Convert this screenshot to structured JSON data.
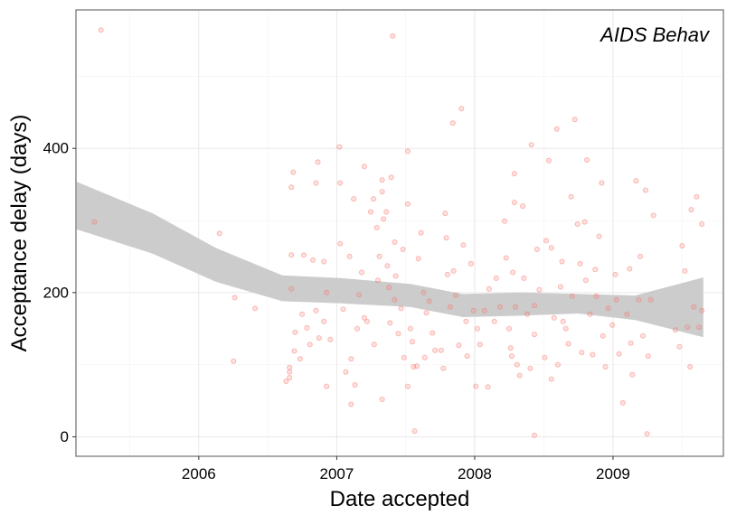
{
  "chart_data": {
    "type": "scatter",
    "title": "",
    "annotation": "AIDS Behav",
    "xlabel": "Date accepted",
    "ylabel": "Acceptance delay (days)",
    "x_ticks": [
      "2006",
      "2007",
      "2008",
      "2009"
    ],
    "y_ticks": [
      "0",
      "200",
      "400"
    ],
    "xlim": [
      "2005-02-10",
      "2009-10-20"
    ],
    "ylim": [
      -27,
      592
    ],
    "grid": true,
    "point_color": "#F8766D",
    "band_color": "#cccccc",
    "points": [
      {
        "x": "2005-03-31",
        "y": 298
      },
      {
        "x": "2005-04-17",
        "y": 564
      },
      {
        "x": "2006-02-25",
        "y": 282
      },
      {
        "x": "2006-04-06",
        "y": 193
      },
      {
        "x": "2006-04-03",
        "y": 105
      },
      {
        "x": "2006-05-30",
        "y": 178
      },
      {
        "x": "2006-08-20",
        "y": 77
      },
      {
        "x": "2006-08-29",
        "y": 96
      },
      {
        "x": "2006-08-29",
        "y": 82
      },
      {
        "x": "2006-08-29",
        "y": 90
      },
      {
        "x": "2006-09-03",
        "y": 205
      },
      {
        "x": "2006-09-03",
        "y": 252
      },
      {
        "x": "2006-09-03",
        "y": 346
      },
      {
        "x": "2006-09-08",
        "y": 367
      },
      {
        "x": "2006-09-11",
        "y": 119
      },
      {
        "x": "2006-09-13",
        "y": 145
      },
      {
        "x": "2006-09-26",
        "y": 108
      },
      {
        "x": "2006-10-01",
        "y": 170
      },
      {
        "x": "2006-10-06",
        "y": 252
      },
      {
        "x": "2006-10-14",
        "y": 151
      },
      {
        "x": "2006-10-22",
        "y": 128
      },
      {
        "x": "2006-10-30",
        "y": 245
      },
      {
        "x": "2006-11-07",
        "y": 175
      },
      {
        "x": "2006-11-07",
        "y": 352
      },
      {
        "x": "2006-11-12",
        "y": 381
      },
      {
        "x": "2006-11-15",
        "y": 137
      },
      {
        "x": "2006-11-28",
        "y": 243
      },
      {
        "x": "2006-11-28",
        "y": 160
      },
      {
        "x": "2006-12-05",
        "y": 200
      },
      {
        "x": "2006-12-05",
        "y": 70
      },
      {
        "x": "2006-12-15",
        "y": 135
      },
      {
        "x": "2007-01-08",
        "y": 402
      },
      {
        "x": "2007-01-10",
        "y": 352
      },
      {
        "x": "2007-01-10",
        "y": 268
      },
      {
        "x": "2007-01-18",
        "y": 177
      },
      {
        "x": "2007-01-25",
        "y": 90
      },
      {
        "x": "2007-02-04",
        "y": 250
      },
      {
        "x": "2007-02-08",
        "y": 108
      },
      {
        "x": "2007-02-08",
        "y": 45
      },
      {
        "x": "2007-02-15",
        "y": 330
      },
      {
        "x": "2007-02-18",
        "y": 72
      },
      {
        "x": "2007-02-24",
        "y": 150
      },
      {
        "x": "2007-03-01",
        "y": 197
      },
      {
        "x": "2007-03-08",
        "y": 228
      },
      {
        "x": "2007-03-15",
        "y": 375
      },
      {
        "x": "2007-03-15",
        "y": 165
      },
      {
        "x": "2007-03-22",
        "y": 160
      },
      {
        "x": "2007-04-01",
        "y": 312
      },
      {
        "x": "2007-04-08",
        "y": 330
      },
      {
        "x": "2007-04-10",
        "y": 128
      },
      {
        "x": "2007-04-17",
        "y": 290
      },
      {
        "x": "2007-04-20",
        "y": 217
      },
      {
        "x": "2007-04-24",
        "y": 250
      },
      {
        "x": "2007-05-01",
        "y": 356
      },
      {
        "x": "2007-05-01",
        "y": 340
      },
      {
        "x": "2007-05-01",
        "y": 52
      },
      {
        "x": "2007-05-05",
        "y": 302
      },
      {
        "x": "2007-05-12",
        "y": 312
      },
      {
        "x": "2007-05-15",
        "y": 237
      },
      {
        "x": "2007-05-19",
        "y": 207
      },
      {
        "x": "2007-05-22",
        "y": 158
      },
      {
        "x": "2007-05-25",
        "y": 360
      },
      {
        "x": "2007-05-29",
        "y": 556
      },
      {
        "x": "2007-06-03",
        "y": 270
      },
      {
        "x": "2007-06-03",
        "y": 190
      },
      {
        "x": "2007-06-06",
        "y": 223
      },
      {
        "x": "2007-06-13",
        "y": 143
      },
      {
        "x": "2007-06-20",
        "y": 178
      },
      {
        "x": "2007-06-25",
        "y": 260
      },
      {
        "x": "2007-06-28",
        "y": 110
      },
      {
        "x": "2007-07-08",
        "y": 396
      },
      {
        "x": "2007-07-08",
        "y": 323
      },
      {
        "x": "2007-07-08",
        "y": 70
      },
      {
        "x": "2007-07-15",
        "y": 150
      },
      {
        "x": "2007-07-20",
        "y": 132
      },
      {
        "x": "2007-07-23",
        "y": 97
      },
      {
        "x": "2007-07-26",
        "y": 8
      },
      {
        "x": "2007-08-01",
        "y": 98
      },
      {
        "x": "2007-08-05",
        "y": 247
      },
      {
        "x": "2007-08-12",
        "y": 283
      },
      {
        "x": "2007-08-19",
        "y": 200
      },
      {
        "x": "2007-08-22",
        "y": 110
      },
      {
        "x": "2007-08-26",
        "y": 172
      },
      {
        "x": "2007-09-03",
        "y": 188
      },
      {
        "x": "2007-09-11",
        "y": 144
      },
      {
        "x": "2007-09-18",
        "y": 120
      },
      {
        "x": "2007-10-04",
        "y": 120
      },
      {
        "x": "2007-10-10",
        "y": 95
      },
      {
        "x": "2007-10-15",
        "y": 310
      },
      {
        "x": "2007-10-18",
        "y": 276
      },
      {
        "x": "2007-10-21",
        "y": 225
      },
      {
        "x": "2007-10-28",
        "y": 180
      },
      {
        "x": "2007-11-04",
        "y": 435
      },
      {
        "x": "2007-11-06",
        "y": 230
      },
      {
        "x": "2007-11-12",
        "y": 196
      },
      {
        "x": "2007-11-20",
        "y": 127
      },
      {
        "x": "2007-11-27",
        "y": 455
      },
      {
        "x": "2007-12-02",
        "y": 266
      },
      {
        "x": "2007-12-09",
        "y": 160
      },
      {
        "x": "2007-12-12",
        "y": 112
      },
      {
        "x": "2007-12-22",
        "y": 240
      },
      {
        "x": "2007-12-29",
        "y": 175
      },
      {
        "x": "2008-01-04",
        "y": 70
      },
      {
        "x": "2008-01-08",
        "y": 150
      },
      {
        "x": "2008-01-15",
        "y": 128
      },
      {
        "x": "2008-01-27",
        "y": 175
      },
      {
        "x": "2008-02-05",
        "y": 69
      },
      {
        "x": "2008-02-08",
        "y": 205
      },
      {
        "x": "2008-02-22",
        "y": 160
      },
      {
        "x": "2008-02-27",
        "y": 220
      },
      {
        "x": "2008-03-08",
        "y": 180
      },
      {
        "x": "2008-03-20",
        "y": 299
      },
      {
        "x": "2008-03-24",
        "y": 248
      },
      {
        "x": "2008-04-01",
        "y": 150
      },
      {
        "x": "2008-04-05",
        "y": 123
      },
      {
        "x": "2008-04-08",
        "y": 112
      },
      {
        "x": "2008-04-11",
        "y": 228
      },
      {
        "x": "2008-04-15",
        "y": 365
      },
      {
        "x": "2008-04-15",
        "y": 325
      },
      {
        "x": "2008-04-18",
        "y": 180
      },
      {
        "x": "2008-04-22",
        "y": 100
      },
      {
        "x": "2008-04-29",
        "y": 85
      },
      {
        "x": "2008-05-07",
        "y": 320
      },
      {
        "x": "2008-05-10",
        "y": 220
      },
      {
        "x": "2008-05-19",
        "y": 170
      },
      {
        "x": "2008-05-27",
        "y": 95
      },
      {
        "x": "2008-05-30",
        "y": 405
      },
      {
        "x": "2008-06-07",
        "y": 182
      },
      {
        "x": "2008-06-07",
        "y": 142
      },
      {
        "x": "2008-06-07",
        "y": 2
      },
      {
        "x": "2008-06-14",
        "y": 260
      },
      {
        "x": "2008-06-20",
        "y": 204
      },
      {
        "x": "2008-07-04",
        "y": 110
      },
      {
        "x": "2008-07-08",
        "y": 272
      },
      {
        "x": "2008-07-15",
        "y": 383
      },
      {
        "x": "2008-07-22",
        "y": 262
      },
      {
        "x": "2008-07-22",
        "y": 80
      },
      {
        "x": "2008-07-29",
        "y": 165
      },
      {
        "x": "2008-08-05",
        "y": 427
      },
      {
        "x": "2008-08-08",
        "y": 100
      },
      {
        "x": "2008-08-15",
        "y": 208
      },
      {
        "x": "2008-08-19",
        "y": 243
      },
      {
        "x": "2008-08-22",
        "y": 160
      },
      {
        "x": "2008-08-29",
        "y": 150
      },
      {
        "x": "2008-09-05",
        "y": 129
      },
      {
        "x": "2008-09-12",
        "y": 333
      },
      {
        "x": "2008-09-15",
        "y": 195
      },
      {
        "x": "2008-09-22",
        "y": 440
      },
      {
        "x": "2008-09-29",
        "y": 295
      },
      {
        "x": "2008-10-06",
        "y": 240
      },
      {
        "x": "2008-10-10",
        "y": 117
      },
      {
        "x": "2008-10-18",
        "y": 298
      },
      {
        "x": "2008-10-21",
        "y": 217
      },
      {
        "x": "2008-10-24",
        "y": 384
      },
      {
        "x": "2008-11-01",
        "y": 170
      },
      {
        "x": "2008-11-08",
        "y": 114
      },
      {
        "x": "2008-11-15",
        "y": 232
      },
      {
        "x": "2008-11-18",
        "y": 195
      },
      {
        "x": "2008-11-25",
        "y": 278
      },
      {
        "x": "2008-12-02",
        "y": 352
      },
      {
        "x": "2008-12-05",
        "y": 140
      },
      {
        "x": "2008-12-12",
        "y": 97
      },
      {
        "x": "2008-12-19",
        "y": 178
      },
      {
        "x": "2008-12-30",
        "y": 155
      },
      {
        "x": "2009-01-07",
        "y": 225
      },
      {
        "x": "2009-01-10",
        "y": 190
      },
      {
        "x": "2009-01-17",
        "y": 115
      },
      {
        "x": "2009-01-27",
        "y": 47
      },
      {
        "x": "2009-02-07",
        "y": 170
      },
      {
        "x": "2009-02-14",
        "y": 233
      },
      {
        "x": "2009-02-17",
        "y": 130
      },
      {
        "x": "2009-02-21",
        "y": 86
      },
      {
        "x": "2009-03-03",
        "y": 355
      },
      {
        "x": "2009-03-10",
        "y": 190
      },
      {
        "x": "2009-03-14",
        "y": 250
      },
      {
        "x": "2009-03-21",
        "y": 140
      },
      {
        "x": "2009-03-28",
        "y": 342
      },
      {
        "x": "2009-04-01",
        "y": 4
      },
      {
        "x": "2009-04-04",
        "y": 112
      },
      {
        "x": "2009-04-11",
        "y": 190
      },
      {
        "x": "2009-04-18",
        "y": 307
      },
      {
        "x": "2009-07-03",
        "y": 265
      },
      {
        "x": "2009-07-10",
        "y": 230
      },
      {
        "x": "2009-07-17",
        "y": 152
      },
      {
        "x": "2009-07-24",
        "y": 97
      },
      {
        "x": "2009-07-27",
        "y": 315
      },
      {
        "x": "2009-08-03",
        "y": 180
      },
      {
        "x": "2009-08-10",
        "y": 333
      },
      {
        "x": "2009-08-17",
        "y": 152
      },
      {
        "x": "2009-08-24",
        "y": 295
      },
      {
        "x": "2009-08-24",
        "y": 175
      },
      {
        "x": "2009-06-26",
        "y": 125
      },
      {
        "x": "2009-06-15",
        "y": 148
      }
    ],
    "band": [
      {
        "x": "2005-02-10",
        "lo": 288,
        "hi": 354
      },
      {
        "x": "2005-09-01",
        "lo": 254,
        "hi": 310
      },
      {
        "x": "2006-02-15",
        "lo": 215,
        "hi": 262
      },
      {
        "x": "2006-08-10",
        "lo": 188,
        "hi": 224
      },
      {
        "x": "2007-01-15",
        "lo": 185,
        "hi": 220
      },
      {
        "x": "2007-07-15",
        "lo": 180,
        "hi": 212
      },
      {
        "x": "2007-12-01",
        "lo": 166,
        "hi": 198
      },
      {
        "x": "2008-05-01",
        "lo": 168,
        "hi": 200
      },
      {
        "x": "2008-10-01",
        "lo": 171,
        "hi": 198
      },
      {
        "x": "2009-03-01",
        "lo": 162,
        "hi": 196
      },
      {
        "x": "2009-08-28",
        "lo": 138,
        "hi": 221
      }
    ]
  }
}
